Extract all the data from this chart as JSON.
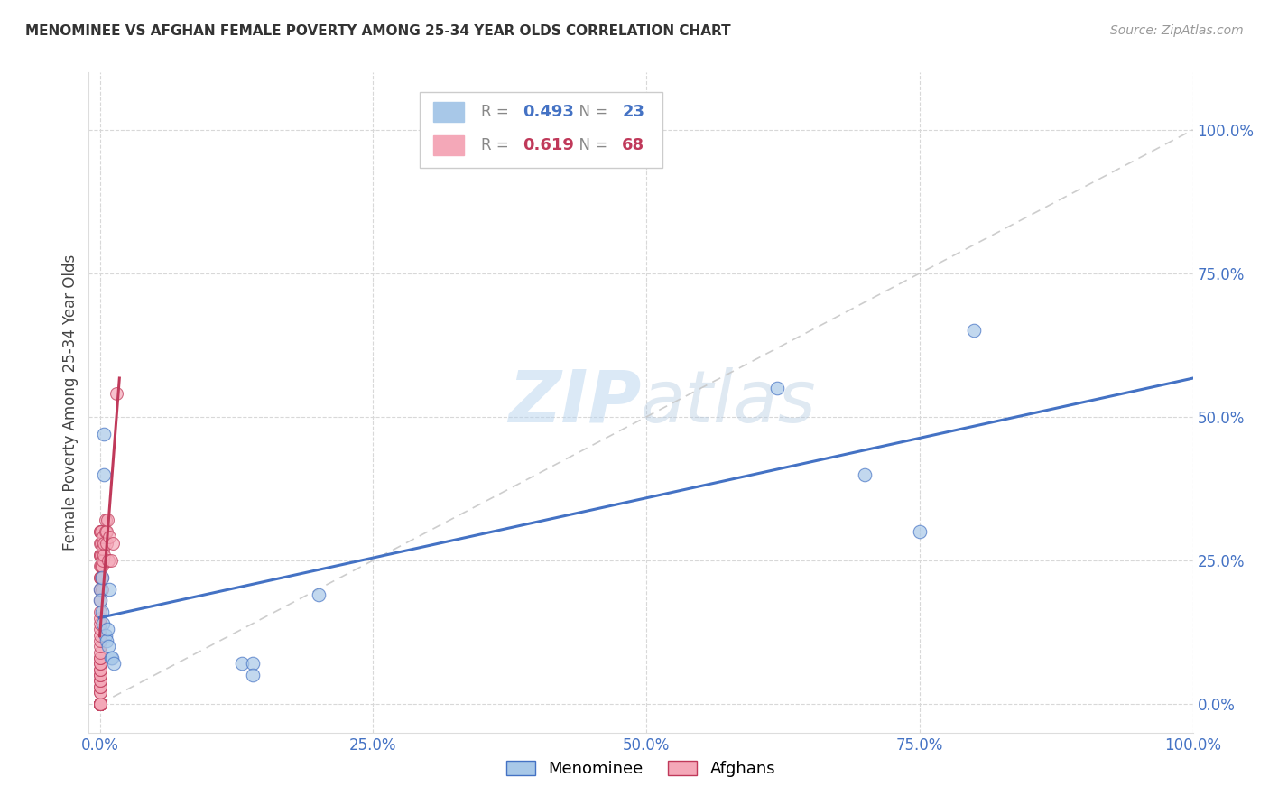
{
  "title": "MENOMINEE VS AFGHAN FEMALE POVERTY AMONG 25-34 YEAR OLDS CORRELATION CHART",
  "source": "Source: ZipAtlas.com",
  "ylabel": "Female Poverty Among 25-34 Year Olds",
  "legend_label_1": "Menominee",
  "legend_label_2": "Afghans",
  "r1": "0.493",
  "n1": "23",
  "r2": "0.619",
  "n2": "68",
  "color1": "#a8c8e8",
  "color2": "#f4a8b8",
  "trendline1_color": "#4472c4",
  "trendline2_color": "#c0395a",
  "dashed_line_color": "#c8c8c8",
  "watermark_zip": "ZIP",
  "watermark_atlas": "atlas",
  "menominee_x": [
    0.0,
    0.0,
    0.002,
    0.002,
    0.003,
    0.004,
    0.004,
    0.005,
    0.006,
    0.007,
    0.008,
    0.009,
    0.01,
    0.011,
    0.013,
    0.13,
    0.14,
    0.14,
    0.2,
    0.62,
    0.7,
    0.75,
    0.8
  ],
  "menominee_y": [
    0.2,
    0.18,
    0.22,
    0.16,
    0.14,
    0.47,
    0.4,
    0.12,
    0.11,
    0.13,
    0.1,
    0.2,
    0.08,
    0.08,
    0.07,
    0.07,
    0.07,
    0.05,
    0.19,
    0.55,
    0.4,
    0.3,
    0.65
  ],
  "afghan_x": [
    0.0,
    0.0,
    0.0,
    0.0,
    0.0,
    0.0,
    0.0,
    0.0,
    0.0,
    0.0,
    0.0,
    0.0,
    0.0,
    0.0,
    0.0,
    0.0,
    0.0,
    0.0,
    0.0,
    0.0,
    0.0,
    0.0,
    0.0,
    0.0,
    0.0,
    0.0,
    0.0,
    0.0,
    0.0,
    0.0,
    0.0,
    0.0,
    0.0,
    0.0,
    0.0,
    0.0,
    0.0,
    0.0,
    0.0,
    0.0,
    0.0,
    0.0,
    0.0,
    0.0,
    0.0,
    0.001,
    0.001,
    0.001,
    0.001,
    0.001,
    0.002,
    0.002,
    0.002,
    0.003,
    0.003,
    0.003,
    0.004,
    0.004,
    0.005,
    0.005,
    0.006,
    0.006,
    0.007,
    0.008,
    0.009,
    0.01,
    0.012,
    0.015
  ],
  "afghan_y": [
    0.0,
    0.0,
    0.0,
    0.0,
    0.0,
    0.0,
    0.0,
    0.0,
    0.0,
    0.0,
    0.0,
    0.0,
    0.02,
    0.02,
    0.03,
    0.03,
    0.04,
    0.04,
    0.05,
    0.05,
    0.06,
    0.06,
    0.07,
    0.07,
    0.08,
    0.08,
    0.09,
    0.1,
    0.11,
    0.12,
    0.13,
    0.14,
    0.15,
    0.16,
    0.18,
    0.2,
    0.22,
    0.24,
    0.26,
    0.28,
    0.3,
    0.2,
    0.22,
    0.3,
    0.26,
    0.22,
    0.24,
    0.26,
    0.28,
    0.3,
    0.2,
    0.22,
    0.24,
    0.25,
    0.27,
    0.29,
    0.26,
    0.28,
    0.3,
    0.32,
    0.28,
    0.3,
    0.32,
    0.25,
    0.29,
    0.25,
    0.28,
    0.54
  ],
  "xlim": [
    -0.01,
    1.0
  ],
  "ylim": [
    -0.05,
    1.1
  ],
  "xtick_vals": [
    0.0,
    0.25,
    0.5,
    0.75,
    1.0
  ],
  "ytick_vals": [
    0.0,
    0.25,
    0.5,
    0.75,
    1.0
  ],
  "grid_color": "#d8d8d8",
  "background_color": "#ffffff",
  "tick_color": "#4472c4",
  "title_color": "#333333",
  "source_color": "#999999"
}
